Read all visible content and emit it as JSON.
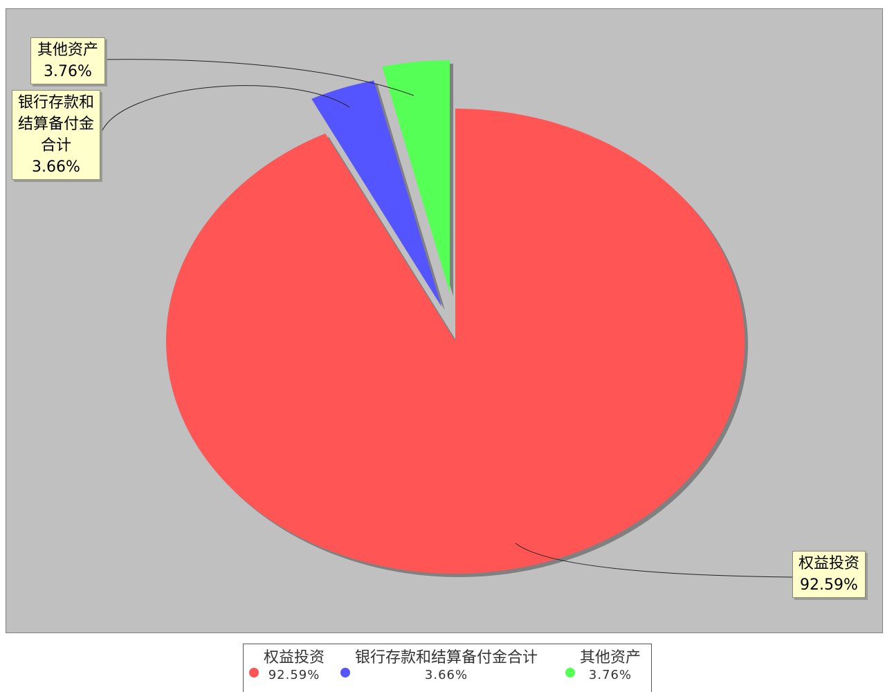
{
  "chart_data": {
    "type": "pie",
    "title": "",
    "slices": [
      {
        "name": "权益投资",
        "value": 92.59,
        "label": "92.59%",
        "color": "#ff5555"
      },
      {
        "name": "银行存款和结算备付金合计",
        "value": 3.66,
        "label": "3.66%",
        "color": "#5555ff"
      },
      {
        "name": "其他资产",
        "value": 3.76,
        "label": "3.76%",
        "color": "#55ff55"
      }
    ],
    "callouts": [
      {
        "lines": [
          "其他资产",
          "3.76%"
        ]
      },
      {
        "lines": [
          "银行存款和",
          "结算备付金",
          "合计",
          "3.66%"
        ]
      },
      {
        "lines": [
          "权益投资",
          "92.59%"
        ]
      }
    ],
    "legend": {
      "position": "bottom",
      "items": [
        {
          "name": "权益投资",
          "value": "92.59%",
          "color": "#ff5555"
        },
        {
          "name": "银行存款和结算备付金合计",
          "value": "3.66%",
          "color": "#5555ff"
        },
        {
          "name": "其他资产",
          "value": "3.76%",
          "color": "#55ff55"
        }
      ]
    },
    "background_color": "#c0c0c0"
  }
}
